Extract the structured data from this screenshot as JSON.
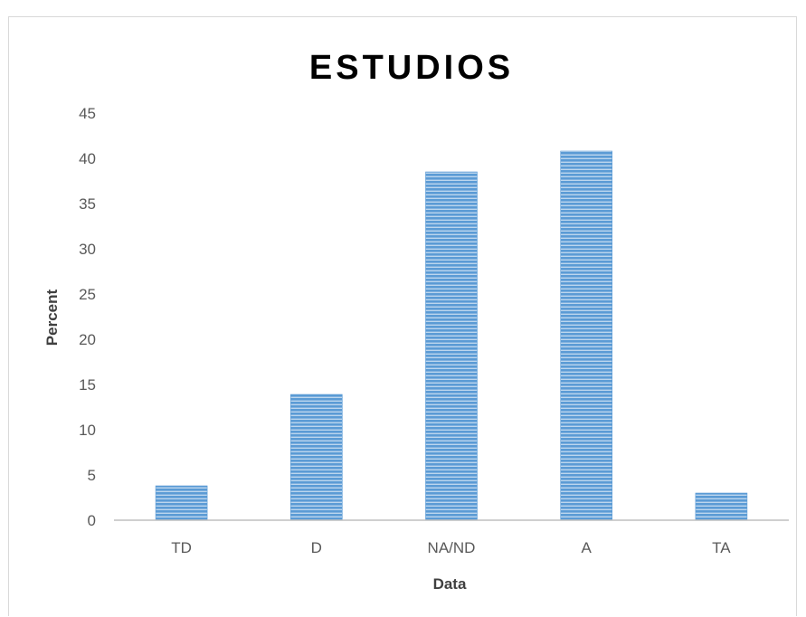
{
  "chart_data": {
    "type": "bar",
    "title": "ESTUDIOS",
    "xlabel": "Data",
    "ylabel": "Percent",
    "categories": [
      "TD",
      "D",
      "NA/ND",
      "A",
      "TA"
    ],
    "values": [
      3.8,
      13.9,
      38.5,
      40.8,
      3.0
    ],
    "ylim": [
      0,
      45
    ],
    "yticks": [
      0,
      5,
      10,
      15,
      20,
      25,
      30,
      35,
      40,
      45
    ],
    "grid": false,
    "legend": "none",
    "bar_color": "#5b9bd5",
    "bar_pattern": "horizontal-stripes"
  }
}
